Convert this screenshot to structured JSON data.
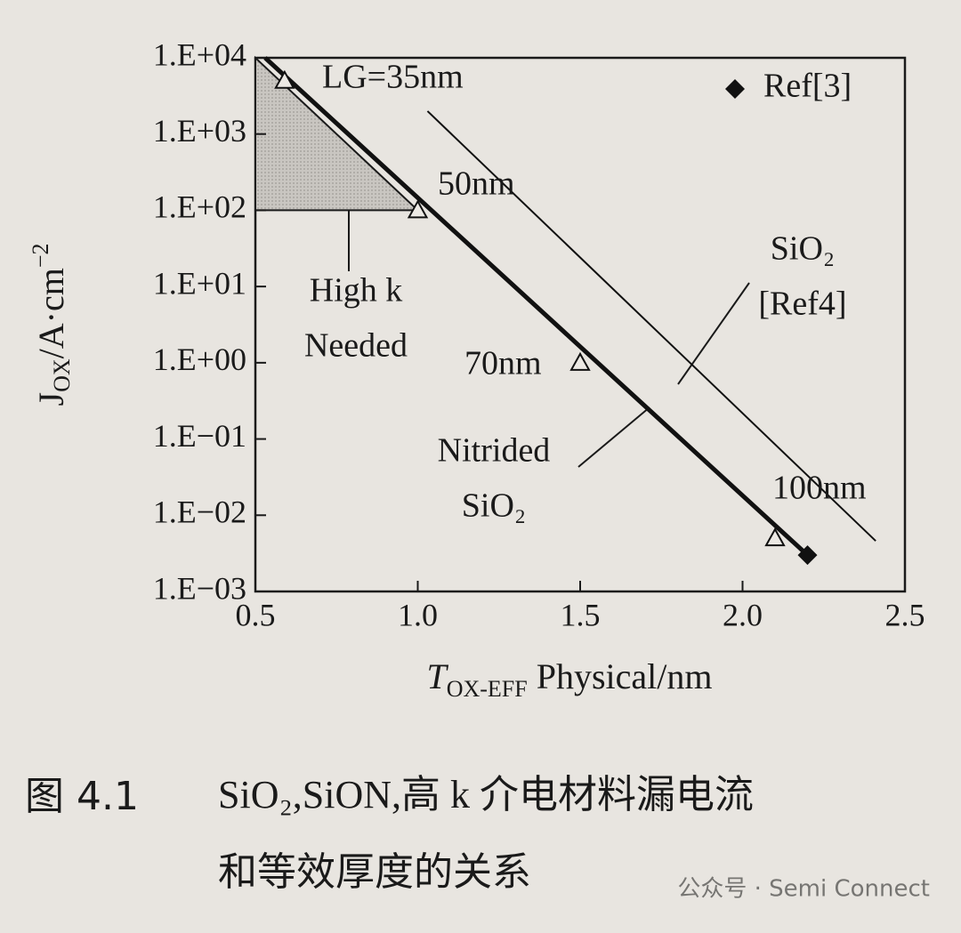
{
  "chart_data": {
    "type": "line",
    "log_y": true,
    "xlim": [
      0.5,
      2.5
    ],
    "ylim": [
      0.001,
      10000
    ],
    "xticks": [
      0.5,
      {
        "value": 1,
        "label": "1.0"
      },
      1.5,
      {
        "value": 2,
        "label": "2.0"
      },
      2.5
    ],
    "yticks": [
      {
        "value": 0.001,
        "label": "1.E−03"
      },
      {
        "value": 0.01,
        "label": "1.E−02"
      },
      {
        "value": 0.1,
        "label": "1.E−01"
      },
      {
        "value": 1,
        "label": "1.E+00"
      },
      {
        "value": 10,
        "label": "1.E+01"
      },
      {
        "value": 100,
        "label": "1.E+02"
      },
      {
        "value": 1000,
        "label": "1.E+03"
      },
      {
        "value": 10000,
        "label": "1.E+04"
      }
    ],
    "x_label": {
      "main": "T",
      "sub": "OX-EFF",
      "rest": " Physical/nm"
    },
    "y_label": {
      "main": "J",
      "sub": "OX",
      "rest": "/A·cm",
      "sup": "−2"
    },
    "legend_position": "upper right",
    "shaded_region": {
      "x": [
        0.5,
        0.5,
        1.0
      ],
      "values": [
        10000,
        100,
        100
      ],
      "color": "#a8a5a0"
    },
    "lines": [
      {
        "style": "thick",
        "color": "#111111",
        "x": [
          0.53,
          2.2
        ],
        "values": [
          10000,
          0.003
        ]
      },
      {
        "style": "thin",
        "color": "#111111",
        "x": [
          1.03,
          2.41
        ],
        "values": [
          2000,
          0.0046
        ]
      }
    ],
    "points": {
      "marker": "triangle",
      "color": "#111111",
      "x": [
        0.59,
        1.0,
        1.5,
        2.1
      ],
      "values": [
        5000,
        100,
        1,
        0.005
      ],
      "labels": [
        "LG=35nm",
        "50nm",
        "70nm",
        "100nm"
      ]
    },
    "series": [
      {
        "name": "Ref[3]",
        "marker": "diamond",
        "color": "#111111",
        "x": [
          2.2
        ],
        "values": [
          0.003
        ]
      }
    ],
    "annotations": [
      {
        "lines": [
          "High k",
          "Needed"
        ]
      },
      {
        "lines": [
          "Nitrided",
          "SiO₂"
        ]
      },
      {
        "lines": [
          "SiO₂",
          "[Ref4]"
        ]
      }
    ]
  },
  "caption": {
    "label": "图 4.1",
    "lines": [
      "SiO₂,SiON,高 k 介电材料漏电流",
      "和等效厚度的关系"
    ]
  },
  "watermark": "公众号 · Semi Connect"
}
